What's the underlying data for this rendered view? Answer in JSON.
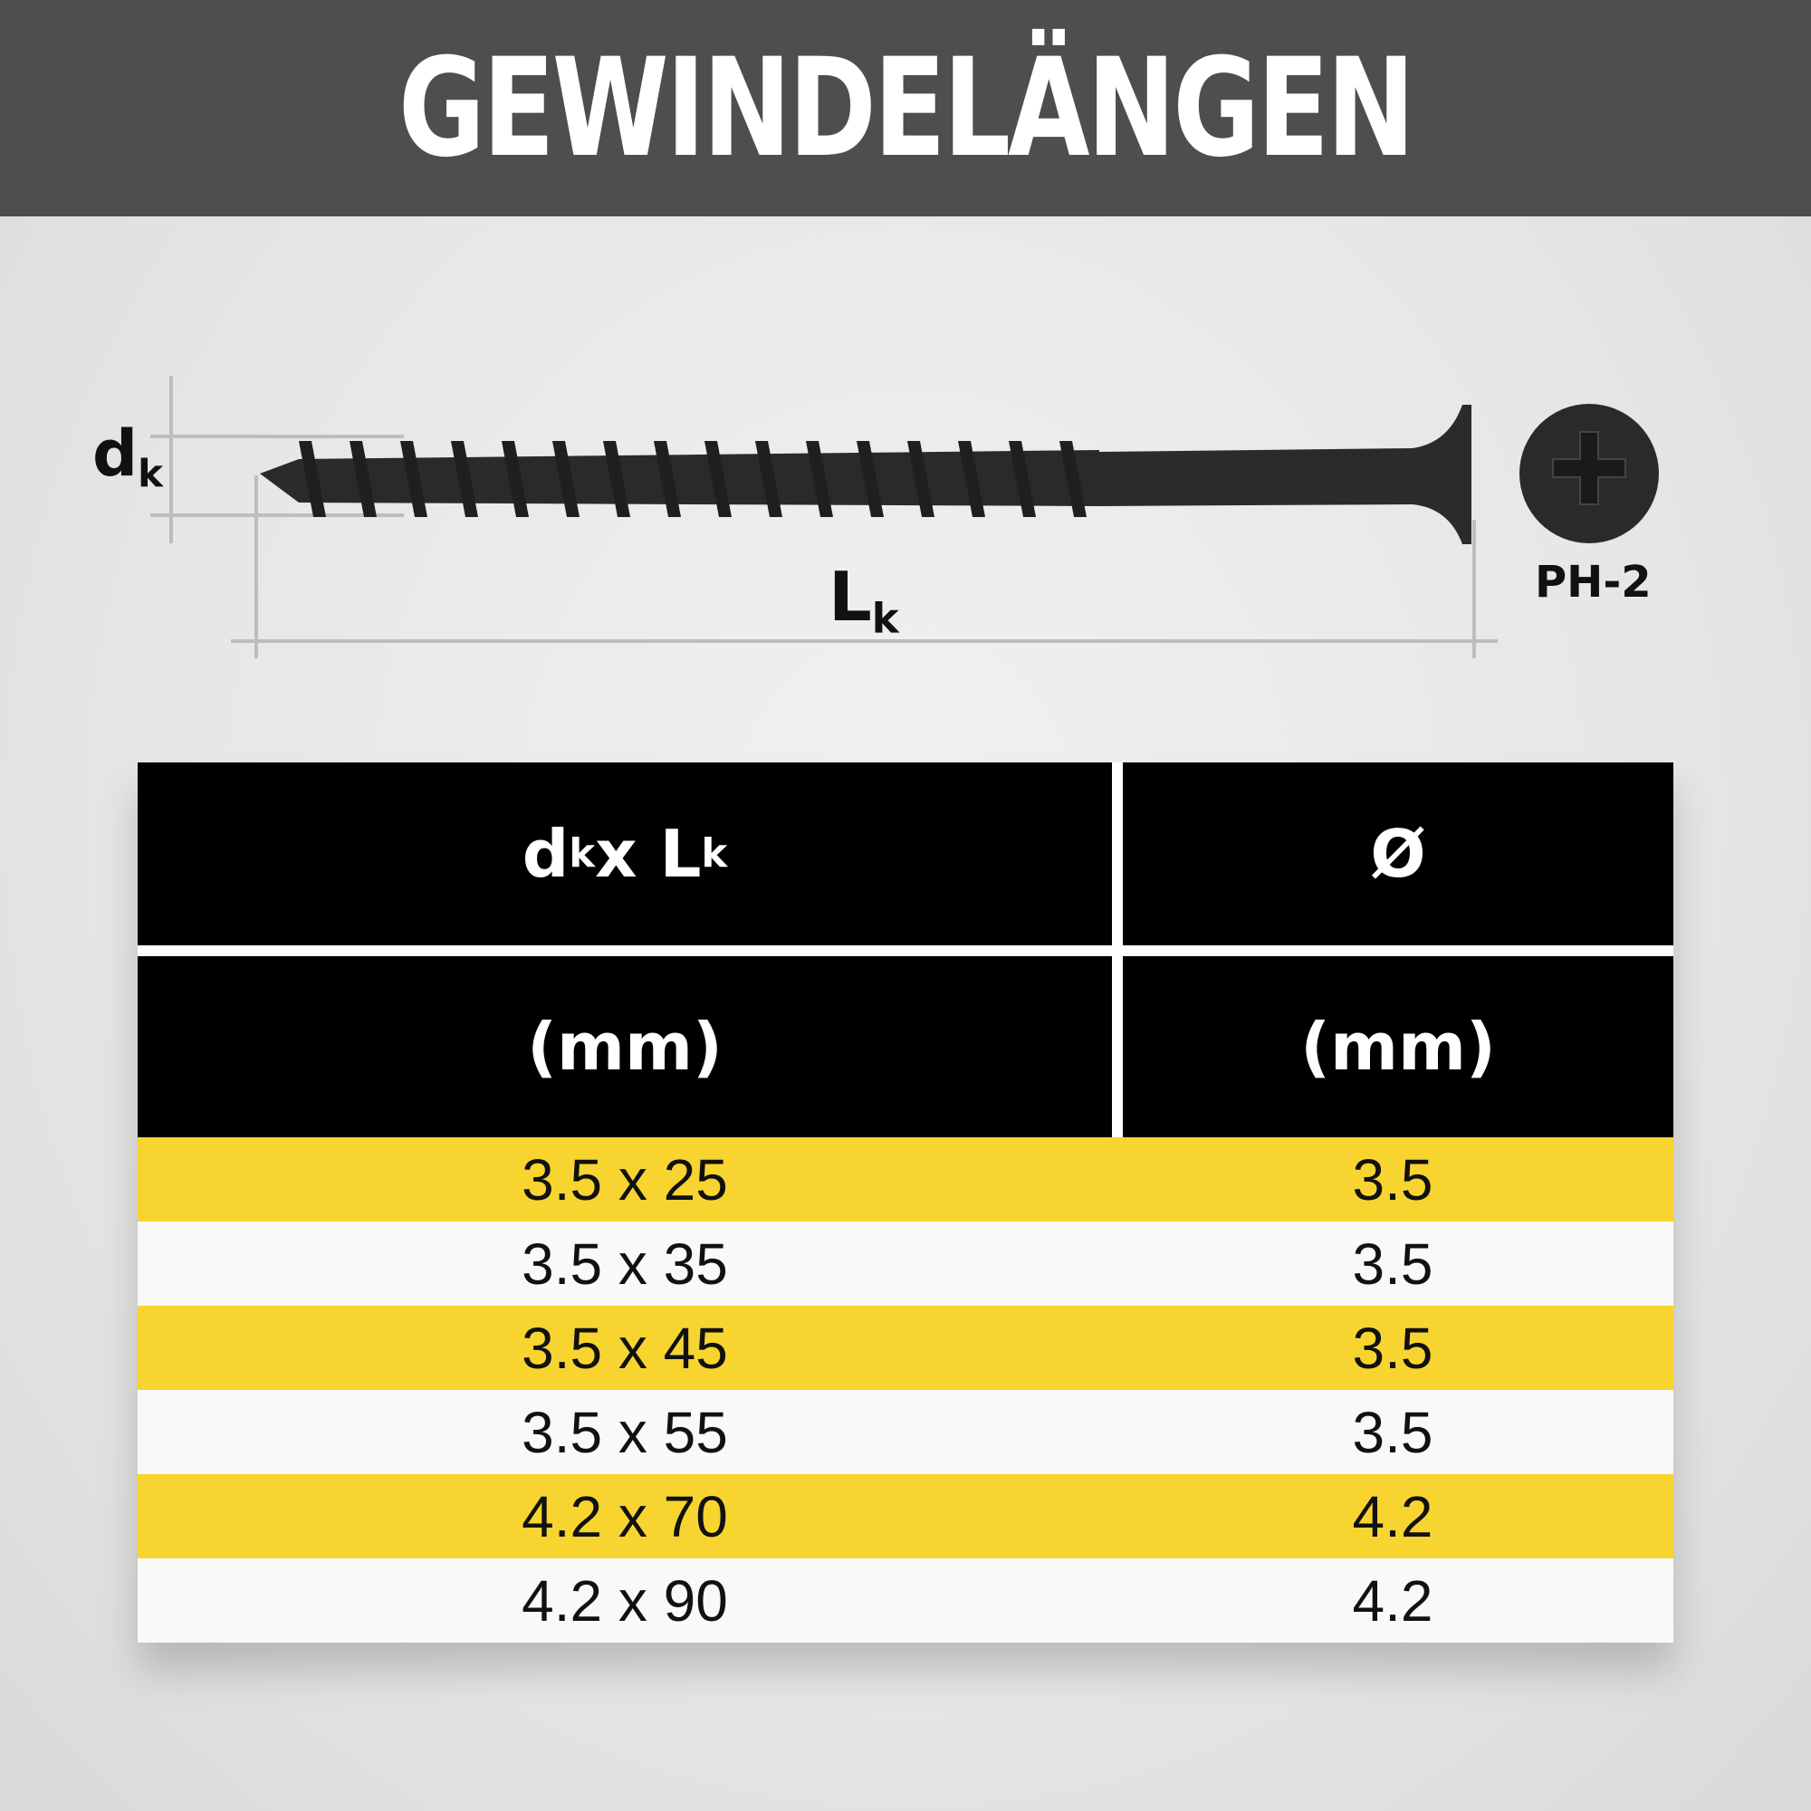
{
  "header": {
    "title": "GEWINDELÄNGEN"
  },
  "diagram": {
    "dk_label": "d",
    "dk_sub": "k",
    "lk_label": "L",
    "lk_sub": "k",
    "drive": "PH-2"
  },
  "table": {
    "header1": {
      "col1_main": "d",
      "col1_sub1": "k",
      "col1_x": " x L",
      "col1_sub2": "k",
      "col2": "Ø"
    },
    "header2": {
      "col1": "(mm)",
      "col2": "(mm)"
    },
    "rows": [
      {
        "size": "3.5 x 25",
        "diameter": "3.5"
      },
      {
        "size": "3.5 x 35",
        "diameter": "3.5"
      },
      {
        "size": "3.5 x 45",
        "diameter": "3.5"
      },
      {
        "size": "3.5 x 55",
        "diameter": "3.5"
      },
      {
        "size": "4.2 x 70",
        "diameter": "4.2"
      },
      {
        "size": "4.2 x 90",
        "diameter": "4.2"
      }
    ]
  },
  "colors": {
    "header_bg": "#4e4e4e",
    "yellow": "#f8d431",
    "black": "#000000"
  }
}
